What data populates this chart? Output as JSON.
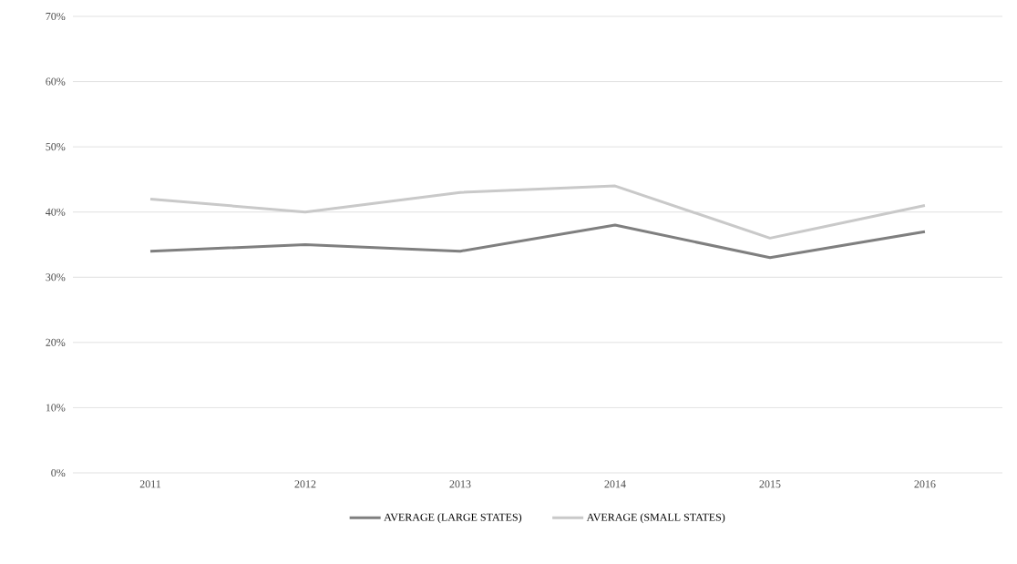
{
  "chart_data": {
    "type": "line",
    "categories": [
      "2011",
      "2012",
      "2013",
      "2014",
      "2015",
      "2016"
    ],
    "series": [
      {
        "name": "AVERAGE (LARGE STATES)",
        "color": "#7f7f7f",
        "values": [
          34,
          35,
          34,
          38,
          33,
          37
        ]
      },
      {
        "name": "AVERAGE (SMALL STATES)",
        "color": "#c9c9c9",
        "values": [
          42,
          40,
          43,
          44,
          36,
          41
        ]
      }
    ],
    "ylim": [
      0,
      70
    ],
    "yticks": [
      {
        "value": 0,
        "label": "0%"
      },
      {
        "value": 10,
        "label": "10%"
      },
      {
        "value": 20,
        "label": "20%"
      },
      {
        "value": 30,
        "label": "30%"
      },
      {
        "value": 40,
        "label": "40%"
      },
      {
        "value": 50,
        "label": "50%"
      },
      {
        "value": 60,
        "label": "60%"
      },
      {
        "value": 70,
        "label": "70%"
      }
    ],
    "grid": "y",
    "legend": "bottom",
    "marker": "none",
    "line_style": "solid"
  }
}
